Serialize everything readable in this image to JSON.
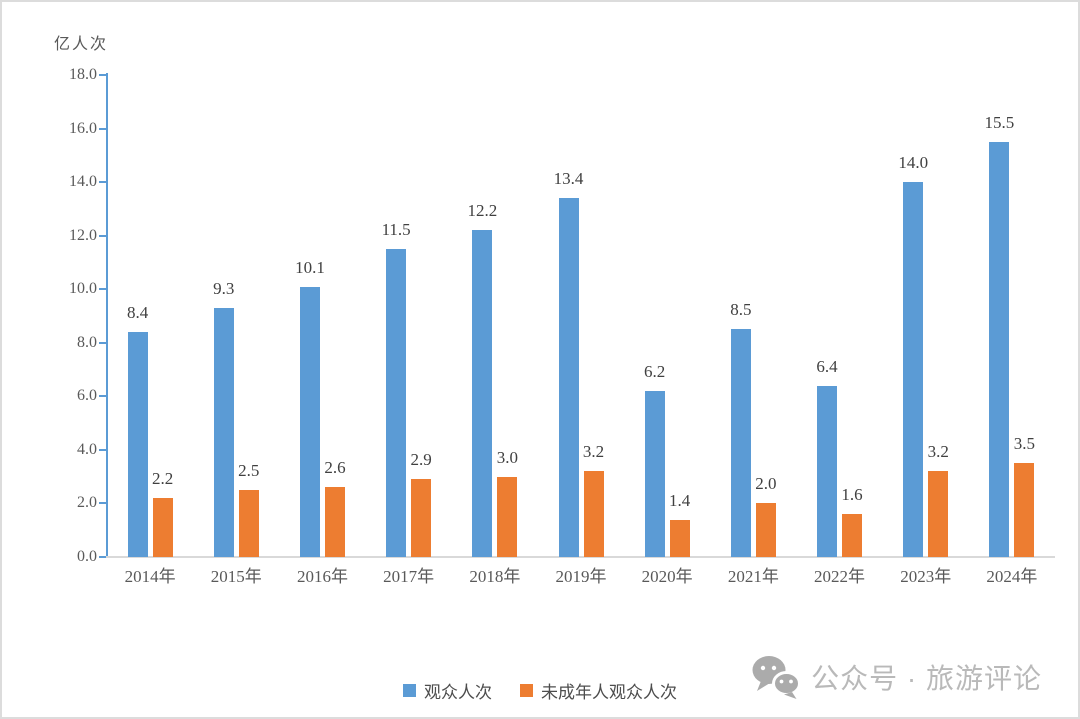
{
  "chart_data": {
    "type": "bar",
    "unit_label": "亿人次",
    "categories": [
      "2014年",
      "2015年",
      "2016年",
      "2017年",
      "2018年",
      "2019年",
      "2020年",
      "2021年",
      "2022年",
      "2023年",
      "2024年"
    ],
    "series": [
      {
        "key": "visitors",
        "name": "观众人次",
        "color": "#5b9bd5",
        "values": [
          8.4,
          9.3,
          10.1,
          11.5,
          12.2,
          13.4,
          6.2,
          8.5,
          6.4,
          14.0,
          15.5
        ]
      },
      {
        "key": "minor-visitors",
        "name": "未成年人观众人次",
        "color": "#ed7d31",
        "values": [
          2.2,
          2.5,
          2.6,
          2.9,
          3.0,
          3.2,
          1.4,
          2.0,
          1.6,
          3.2,
          3.5
        ]
      }
    ],
    "ylim": [
      0,
      18
    ],
    "ytick_step": 2,
    "ytick_labels": [
      "0.0",
      "2.0",
      "4.0",
      "6.0",
      "8.0",
      "10.0",
      "12.0",
      "14.0",
      "16.0",
      "18.0"
    ],
    "grid": false,
    "data_labels": true,
    "legend_position": "bottom",
    "axis_color": "#5b9bd5",
    "baseline_color": "#d9d9d9",
    "tick_label_color": "#595959",
    "data_label_color": "#404040"
  },
  "watermark": {
    "icon": "wechat-icon",
    "icon_color": "#ababab",
    "text": "公众号 · 旅游评论",
    "text_color": "#b9b9b9"
  },
  "page": {
    "background": "#ffffff",
    "border_color": "#dcdcdc"
  }
}
